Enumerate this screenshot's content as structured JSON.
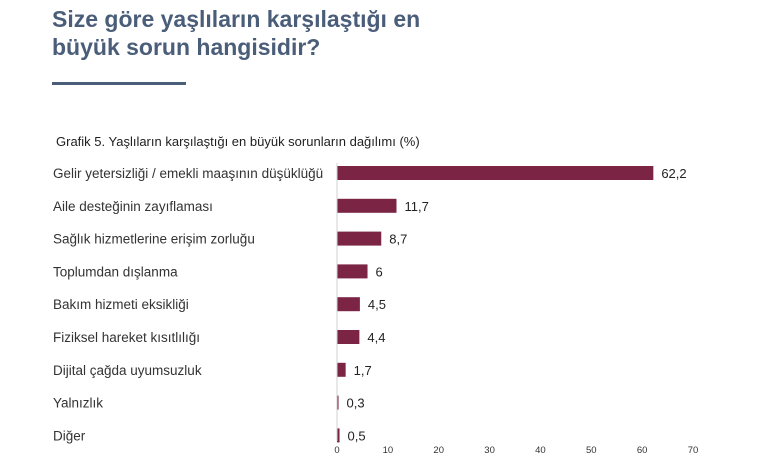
{
  "page": {
    "title_line1": "Size göre yaşlıların karşılaştığı en",
    "title_line2": "büyük sorun hangisidir?",
    "accent_color": "#4a5d79"
  },
  "chart_data": {
    "type": "bar",
    "orientation": "horizontal",
    "title": "Grafik 5. Yaşlıların karşılaştığı en büyük sorunların dağılımı (%)",
    "categories": [
      "Gelir yetersizliği / emekli maaşının düşüklüğü",
      "Aile desteğinin zayıflaması",
      "Sağlık hizmetlerine erişim zorluğu",
      "Toplumdan dışlanma",
      "Bakım hizmeti eksikliği",
      "Fiziksel hareket kısıtlılığı",
      "Dijital çağda uyumsuzluk",
      "Yalnızlık",
      "Diğer"
    ],
    "values": [
      62.2,
      11.7,
      8.7,
      6,
      4.5,
      4.4,
      1.7,
      0.3,
      0.5
    ],
    "value_labels": [
      "62,2",
      "11,7",
      "8,7",
      "6",
      "4,5",
      "4,4",
      "1,7",
      "0,3",
      "0,5"
    ],
    "xlim": [
      0,
      70
    ],
    "xticks": [
      0,
      10,
      20,
      30,
      40,
      50,
      60,
      70
    ],
    "bar_color": "#7b2443",
    "grid": false,
    "legend": "none"
  }
}
